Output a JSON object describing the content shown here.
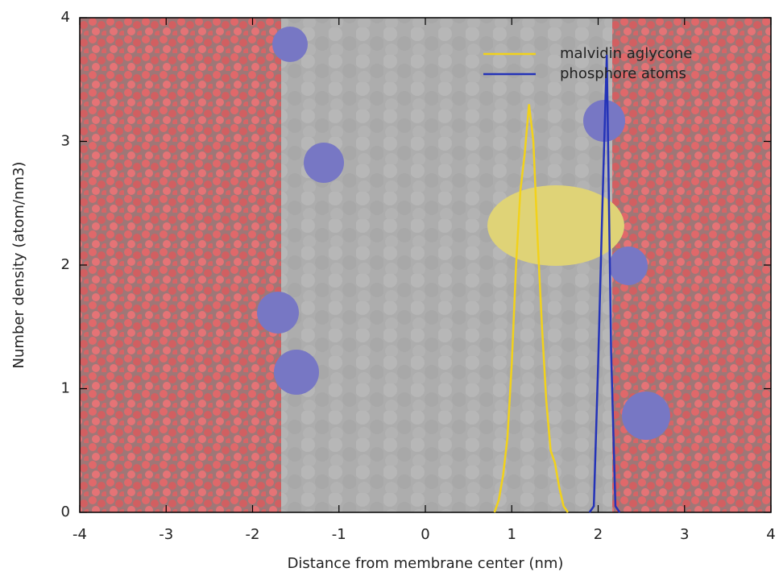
{
  "chart_data": {
    "type": "line",
    "xlabel": "Distance from membrane center (nm)",
    "ylabel": "Number density (atom/nm3)",
    "xlim": [
      -4,
      4
    ],
    "xticks": [
      -4,
      -3,
      -2,
      -1,
      0,
      1,
      2,
      3,
      4
    ],
    "ylim": [
      0,
      4
    ],
    "yticks": [
      0,
      1,
      2,
      3,
      4
    ],
    "legend": "top-right",
    "series": [
      {
        "name": "malvidin aglycone",
        "color": "#f2d21a",
        "x": [
          0.8,
          0.85,
          0.9,
          0.95,
          1.0,
          1.05,
          1.1,
          1.15,
          1.2,
          1.25,
          1.3,
          1.35,
          1.4,
          1.45,
          1.5,
          1.55,
          1.6,
          1.65
        ],
        "values": [
          0,
          0.1,
          0.3,
          0.6,
          1.2,
          2.0,
          2.6,
          2.9,
          3.3,
          3.0,
          2.2,
          1.5,
          0.9,
          0.5,
          0.4,
          0.2,
          0.05,
          0
        ]
      },
      {
        "name": "phosphore atoms",
        "color": "#2433b8",
        "x": [
          1.9,
          1.95,
          2.0,
          2.05,
          2.1,
          2.15,
          2.2,
          2.25
        ],
        "values": [
          0,
          0.05,
          1.2,
          2.5,
          3.7,
          1.3,
          0.05,
          0
        ]
      }
    ]
  }
}
